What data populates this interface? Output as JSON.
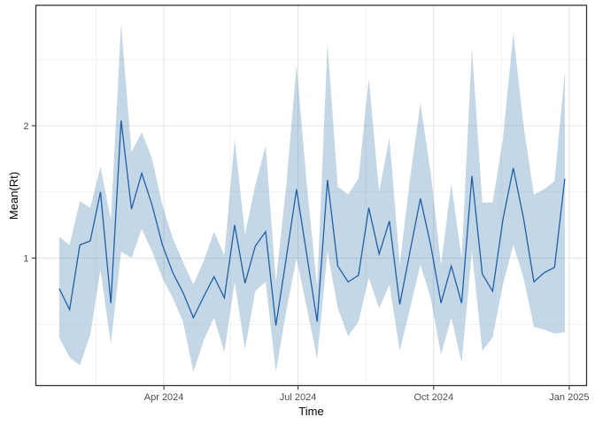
{
  "figure": {
    "background": "#ffffff",
    "description": "Time series of estimated reproduction number Mean(Rt) with credible interval ribbon"
  },
  "chart_data": {
    "type": "line",
    "title": "",
    "xlabel": "Time",
    "ylabel": "Mean(Rt)",
    "legend": "none",
    "grid": {
      "major_color": "#e4e4e4",
      "minor_color": "#efefef",
      "major_on": true,
      "minor_on": true
    },
    "panel_border_color": "#333333",
    "tick_color": "#333333",
    "tick_label_color": "#4d4d4d",
    "axis_title_color": "#000000",
    "ylim": [
      0.04,
      2.93
    ],
    "y_ticks": [
      {
        "value": 1,
        "label": "1"
      },
      {
        "value": 2,
        "label": "2"
      }
    ],
    "y_minor_ticks": [
      0.5,
      1.5,
      2.5
    ],
    "x_ticks": [
      {
        "date": "2024-04-01",
        "label": "Apr 2024"
      },
      {
        "date": "2024-07-01",
        "label": "Jul 2024"
      },
      {
        "date": "2024-10-01",
        "label": "Oct 2024"
      },
      {
        "date": "2025-01-01",
        "label": "Jan 2025"
      }
    ],
    "x_minor_ticks": [
      "2024-02-15",
      "2024-05-16",
      "2024-08-16",
      "2024-11-16"
    ],
    "x": [
      "2024-01-21",
      "2024-01-28",
      "2024-02-04",
      "2024-02-11",
      "2024-02-18",
      "2024-02-25",
      "2024-03-03",
      "2024-03-10",
      "2024-03-17",
      "2024-03-24",
      "2024-03-31",
      "2024-04-07",
      "2024-04-14",
      "2024-04-21",
      "2024-04-28",
      "2024-05-05",
      "2024-05-12",
      "2024-05-19",
      "2024-05-26",
      "2024-06-02",
      "2024-06-09",
      "2024-06-16",
      "2024-06-23",
      "2024-06-30",
      "2024-07-07",
      "2024-07-14",
      "2024-07-21",
      "2024-07-28",
      "2024-08-04",
      "2024-08-11",
      "2024-08-18",
      "2024-08-25",
      "2024-09-01",
      "2024-09-08",
      "2024-09-15",
      "2024-09-22",
      "2024-09-29",
      "2024-10-06",
      "2024-10-13",
      "2024-10-20",
      "2024-10-27",
      "2024-11-03",
      "2024-11-10",
      "2024-11-17",
      "2024-11-24",
      "2024-12-01",
      "2024-12-08",
      "2024-12-15",
      "2024-12-22",
      "2024-12-29"
    ],
    "series": [
      {
        "name": "mean_rt",
        "type": "line",
        "color": "#1f5fa5",
        "width": 1.3,
        "values": [
          0.77,
          0.61,
          1.1,
          1.13,
          1.5,
          0.66,
          2.04,
          1.37,
          1.64,
          1.4,
          1.1,
          0.89,
          0.74,
          0.55,
          0.71,
          0.86,
          0.7,
          1.25,
          0.81,
          1.09,
          1.2,
          0.49,
          1.0,
          1.52,
          1.02,
          0.52,
          1.59,
          0.94,
          0.82,
          0.87,
          1.38,
          1.03,
          1.28,
          0.65,
          1.05,
          1.45,
          1.1,
          0.66,
          0.94,
          0.66,
          1.62,
          0.88,
          0.75,
          1.29,
          1.68,
          1.3,
          0.82,
          0.89,
          0.93,
          1.6
        ]
      },
      {
        "name": "credible_interval",
        "type": "ribbon",
        "fill": "#4682b4",
        "fill_opacity": 0.32,
        "lower": [
          0.4,
          0.25,
          0.19,
          0.42,
          0.91,
          0.35,
          1.05,
          1.0,
          1.22,
          1.05,
          0.85,
          0.7,
          0.52,
          0.14,
          0.38,
          0.55,
          0.29,
          0.82,
          0.31,
          0.75,
          0.82,
          0.14,
          0.6,
          1.0,
          0.62,
          0.24,
          1.05,
          0.62,
          0.41,
          0.52,
          0.85,
          0.62,
          0.8,
          0.3,
          0.62,
          0.95,
          0.7,
          0.27,
          0.55,
          0.21,
          1.05,
          0.3,
          0.4,
          0.8,
          1.1,
          0.85,
          0.48,
          0.46,
          0.43,
          0.44
        ],
        "upper": [
          1.16,
          1.1,
          1.43,
          1.38,
          1.69,
          1.29,
          2.77,
          1.8,
          1.95,
          1.75,
          1.4,
          1.15,
          0.97,
          0.8,
          0.98,
          1.2,
          1.02,
          1.9,
          1.18,
          1.55,
          1.85,
          0.82,
          1.55,
          2.46,
          1.55,
          0.78,
          2.62,
          1.54,
          1.48,
          1.6,
          2.36,
          1.5,
          1.91,
          0.95,
          1.6,
          2.17,
          1.65,
          0.95,
          1.56,
          1.0,
          2.59,
          1.42,
          1.42,
          1.9,
          2.7,
          2.0,
          1.48,
          1.52,
          1.58,
          2.41
        ]
      }
    ]
  }
}
